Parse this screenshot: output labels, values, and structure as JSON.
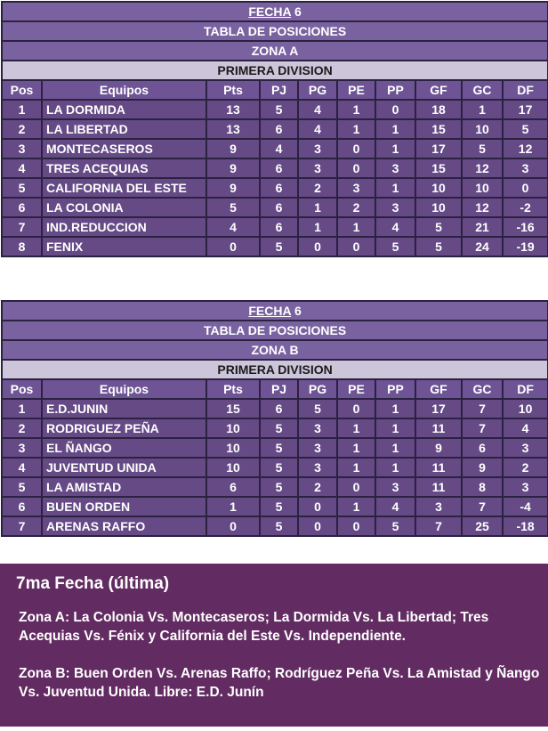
{
  "columns": [
    "Pos",
    "Equipos",
    "Pts",
    "PJ",
    "PG",
    "PE",
    "PP",
    "GF",
    "GC",
    "DF"
  ],
  "zona_a": {
    "fecha_label": "FECHA",
    "fecha_num": "6",
    "title": "TABLA DE POSICIONES",
    "zona": "ZONA A",
    "division": "PRIMERA DIVISION",
    "rows": [
      [
        "1",
        "LA DORMIDA",
        "13",
        "5",
        "4",
        "1",
        "0",
        "18",
        "1",
        "17"
      ],
      [
        "2",
        "LA LIBERTAD",
        "13",
        "6",
        "4",
        "1",
        "1",
        "15",
        "10",
        "5"
      ],
      [
        "3",
        "MONTECASEROS",
        "9",
        "4",
        "3",
        "0",
        "1",
        "17",
        "5",
        "12"
      ],
      [
        "4",
        "TRES ACEQUIAS",
        "9",
        "6",
        "3",
        "0",
        "3",
        "15",
        "12",
        "3"
      ],
      [
        "5",
        "CALIFORNIA DEL ESTE",
        "9",
        "6",
        "2",
        "3",
        "1",
        "10",
        "10",
        "0"
      ],
      [
        "6",
        "LA COLONIA",
        "5",
        "6",
        "1",
        "2",
        "3",
        "10",
        "12",
        "-2"
      ],
      [
        "7",
        "IND.REDUCCION",
        "4",
        "6",
        "1",
        "1",
        "4",
        "5",
        "21",
        "-16"
      ],
      [
        "8",
        "FENIX",
        "0",
        "5",
        "0",
        "0",
        "5",
        "5",
        "24",
        "-19"
      ]
    ]
  },
  "zona_b": {
    "fecha_label": "FECHA",
    "fecha_num": "6",
    "title": "TABLA DE POSICIONES",
    "zona": "ZONA B",
    "division": "PRIMERA DIVISION",
    "rows": [
      [
        "1",
        "E.D.JUNIN",
        "15",
        "6",
        "5",
        "0",
        "1",
        "17",
        "7",
        "10"
      ],
      [
        "2",
        "RODRIGUEZ PEÑA",
        "10",
        "5",
        "3",
        "1",
        "1",
        "11",
        "7",
        "4"
      ],
      [
        "3",
        "EL ÑANGO",
        "10",
        "5",
        "3",
        "1",
        "1",
        "9",
        "6",
        "3"
      ],
      [
        "4",
        "JUVENTUD UNIDA",
        "10",
        "5",
        "3",
        "1",
        "1",
        "11",
        "9",
        "2"
      ],
      [
        "5",
        "LA AMISTAD",
        "6",
        "5",
        "2",
        "0",
        "3",
        "11",
        "8",
        "3"
      ],
      [
        "6",
        "BUEN ORDEN",
        "1",
        "5",
        "0",
        "1",
        "4",
        "3",
        "7",
        "-4"
      ],
      [
        "7",
        "ARENAS RAFFO",
        "0",
        "5",
        "0",
        "0",
        "5",
        "7",
        "25",
        "-18"
      ]
    ]
  },
  "next_round": {
    "title": "7ma Fecha (última)",
    "zona_a": "Zona A: La Colonia Vs. Montecaseros; La Dormida Vs. La Libertad; Tres Acequias Vs. Fénix y California del Este Vs. Independiente.",
    "zona_b": "Zona B: Buen Orden Vs. Arenas Raffo; Rodríguez Peña Vs. La Amistad y Ñango Vs. Juventud Unida. Libre: E.D. Junín"
  },
  "colors": {
    "header": "#7a62a0",
    "row": "#654a86",
    "division": "#cdc6da",
    "box": "#622c62"
  }
}
